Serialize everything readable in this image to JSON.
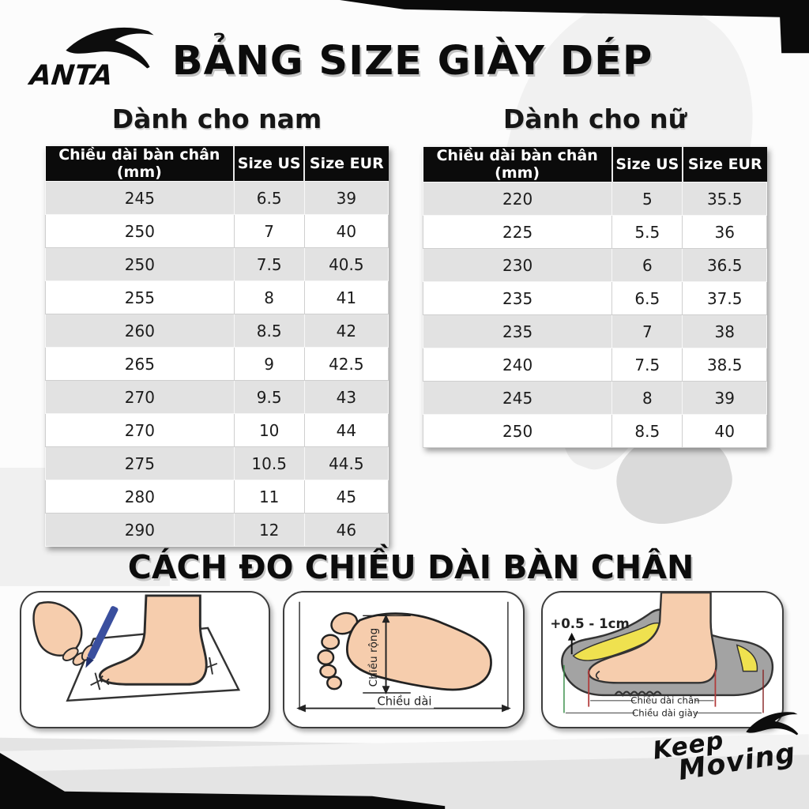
{
  "brand": {
    "wordmark": "ANTA",
    "keep_moving": {
      "line1": "Keep",
      "line2": "Moving"
    }
  },
  "title": "BẢNG SIZE GIÀY DÉP",
  "tables": {
    "men": {
      "heading": "Dành cho nam",
      "columns": [
        "Chiều dài bàn chân (mm)",
        "Size US",
        "Size EUR"
      ],
      "rows": [
        [
          "245",
          "6.5",
          "39"
        ],
        [
          "250",
          "7",
          "40"
        ],
        [
          "250",
          "7.5",
          "40.5"
        ],
        [
          "255",
          "8",
          "41"
        ],
        [
          "260",
          "8.5",
          "42"
        ],
        [
          "265",
          "9",
          "42.5"
        ],
        [
          "270",
          "9.5",
          "43"
        ],
        [
          "270",
          "10",
          "44"
        ],
        [
          "275",
          "10.5",
          "44.5"
        ],
        [
          "280",
          "11",
          "45"
        ],
        [
          "290",
          "12",
          "46"
        ]
      ]
    },
    "women": {
      "heading": "Dành cho nữ",
      "columns": [
        "Chiều dài bàn chân (mm)",
        "Size US",
        "Size EUR"
      ],
      "rows": [
        [
          "220",
          "5",
          "35.5"
        ],
        [
          "225",
          "5.5",
          "36"
        ],
        [
          "230",
          "6",
          "36.5"
        ],
        [
          "235",
          "6.5",
          "37.5"
        ],
        [
          "235",
          "7",
          "38"
        ],
        [
          "240",
          "7.5",
          "38.5"
        ],
        [
          "245",
          "8",
          "39"
        ],
        [
          "250",
          "8.5",
          "40"
        ]
      ]
    }
  },
  "measure_section": {
    "heading": "CÁCH ĐO CHIỀU DÀI BÀN CHÂN",
    "sole_panel": {
      "width_label": "Chiều rộng",
      "length_label": "Chiều dài"
    },
    "shoe_panel": {
      "allowance": "+0.5 - 1cm",
      "foot_length_label": "Chiều dài chân",
      "shoe_length_label": "Chiều dài giày"
    }
  },
  "colors": {
    "accent_black": "#0a0a0a",
    "row_alt_gray": "#e2e2e2",
    "skin": "#f6cdad",
    "pen_blue": "#3a4f9e",
    "insole_yellow": "#efe14f",
    "shoe_gray": "#a3a3a3",
    "guide_red": "#b23a3a",
    "guide_green": "#3a8f4a"
  }
}
